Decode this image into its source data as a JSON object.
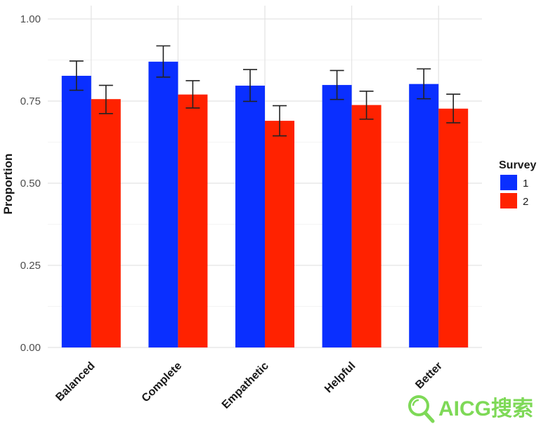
{
  "chart_data": {
    "type": "bar",
    "categories": [
      "Balanced",
      "Complete",
      "Empathetic",
      "Helpful",
      "Better"
    ],
    "ylabel": "Proportion",
    "ylim": [
      0,
      1.0
    ],
    "yticks": [
      "0.00",
      "0.25",
      "0.50",
      "0.75",
      "1.00"
    ],
    "legend_title": "Survey",
    "legend_position": "right",
    "grid": true,
    "series": [
      {
        "name": "1",
        "color": "#0a2fff",
        "values": [
          0.827,
          0.87,
          0.797,
          0.799,
          0.802
        ],
        "error_low": [
          0.783,
          0.823,
          0.749,
          0.755,
          0.757
        ],
        "error_high": [
          0.872,
          0.918,
          0.846,
          0.843,
          0.848
        ]
      },
      {
        "name": "2",
        "color": "#ff2200",
        "values": [
          0.756,
          0.77,
          0.69,
          0.738,
          0.727
        ],
        "error_low": [
          0.712,
          0.729,
          0.644,
          0.695,
          0.684
        ],
        "error_high": [
          0.798,
          0.812,
          0.736,
          0.78,
          0.771
        ]
      }
    ]
  },
  "watermark": {
    "text": "AICG搜索",
    "icon": "magnifier-icon",
    "color": "#7ed957"
  }
}
